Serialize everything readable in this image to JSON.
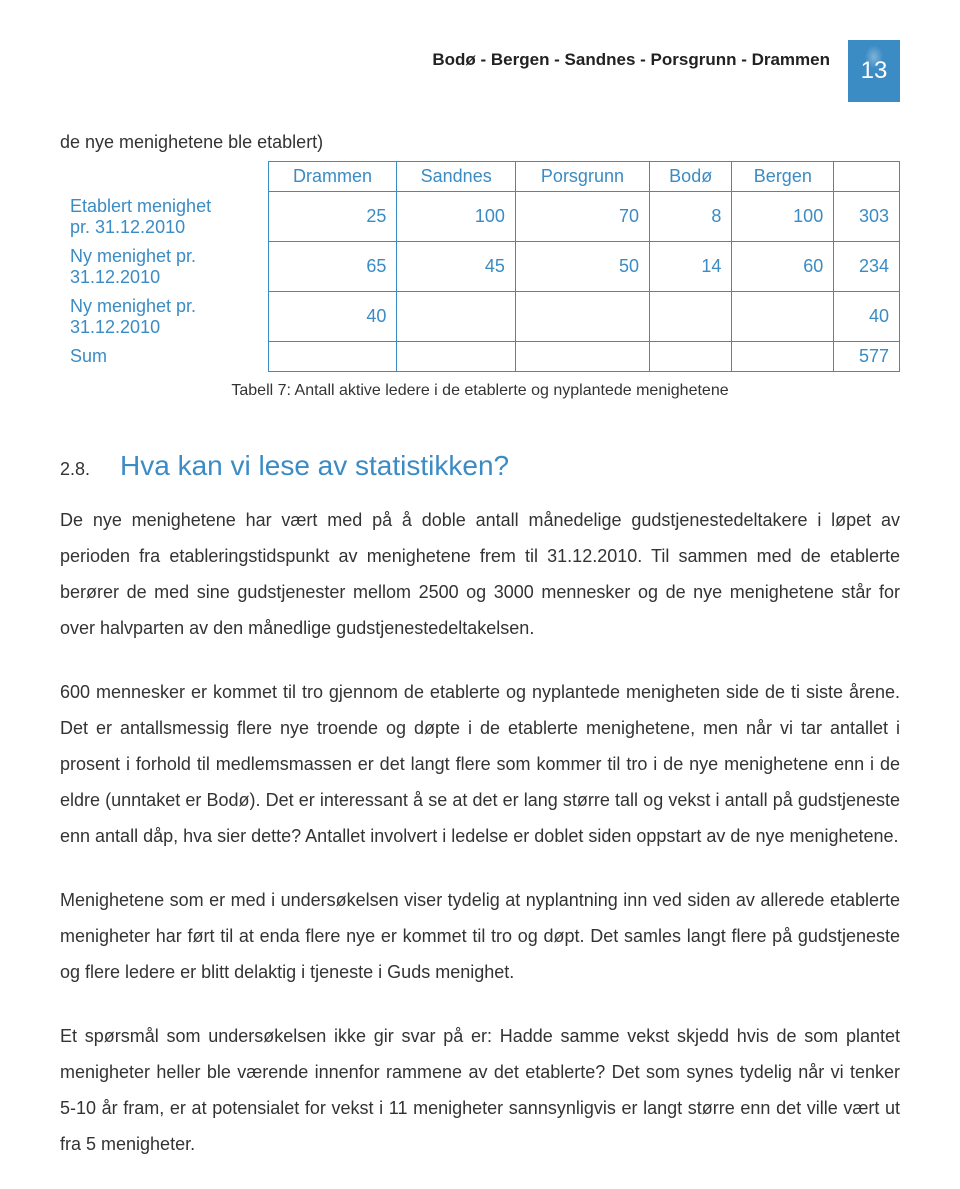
{
  "header": {
    "cities": "Bodø - Bergen - Sandnes - Porsgrunn - Drammen",
    "page_number": "13"
  },
  "intro": "de nye menighetene ble etablert)",
  "table": {
    "columns": [
      "",
      "Drammen",
      "Sandnes",
      "Porsgrunn",
      "Bodø",
      "Bergen",
      ""
    ],
    "rows": [
      {
        "label": "Etablert menighet\npr. 31.12.2010",
        "cells": [
          "25",
          "100",
          "70",
          "8",
          "100",
          "303"
        ]
      },
      {
        "label": "Ny menighet pr.\n31.12.2010",
        "cells": [
          "65",
          "45",
          "50",
          "14",
          "60",
          "234"
        ]
      },
      {
        "label": "Ny menighet pr.\n31.12.2010",
        "cells": [
          "40",
          "",
          "",
          "",
          "",
          "40"
        ]
      },
      {
        "label": "Sum",
        "cells": [
          "",
          "",
          "",
          "",
          "",
          "577"
        ]
      }
    ],
    "caption": "Tabell 7: Antall aktive ledere i de etablerte og nyplantede menighetene",
    "header_color": "#3b8bc4",
    "border_color": "#3b8bc4",
    "cell_text_color": "#3b8bc4",
    "font_size": 18
  },
  "section": {
    "number": "2.8.",
    "title": "Hva kan vi lese av statistikken?"
  },
  "paragraphs": [
    "De nye menighetene har vært med på å doble antall månedelige gudstjenestedeltakere i løpet av perioden fra etableringstidspunkt av menighetene frem til 31.12.2010. Til sammen med de etablerte berører de med sine gudstjenester mellom 2500 og 3000 mennesker og de nye menighetene står for over halvparten av den månedlige gudstjenestedeltakelsen.",
    "600 mennesker er kommet til tro gjennom de etablerte og nyplantede menigheten side de ti siste årene. Det er antallsmessig flere nye troende og døpte i de etablerte menighetene, men når vi tar antallet i prosent i forhold til medlemsmassen er det langt flere som kommer til tro i de nye menighetene enn i de eldre (unntaket er Bodø). Det er interessant å se at det er lang større tall og vekst i antall på gudstjeneste enn antall dåp, hva sier dette? Antallet involvert i ledelse er doblet siden oppstart av de nye menighetene.",
    "Menighetene som er med i undersøkelsen viser tydelig at nyplantning inn ved siden av allerede etablerte menigheter har ført til at enda flere nye er kommet til tro og døpt. Det samles langt flere på gudstjeneste og flere ledere er blitt delaktig i tjeneste i Guds menighet.",
    "Et spørsmål som undersøkelsen ikke gir svar på er: Hadde samme vekst skjedd hvis de som plantet menigheter heller ble værende innenfor rammene av det etablerte? Det som synes tydelig når vi tenker 5-10 år fram, er at potensialet for vekst i 11 menigheter sannsynligvis er langt større enn det ville vært ut fra 5 menigheter."
  ],
  "colors": {
    "accent": "#3b8bc4",
    "text": "#333333",
    "background": "#ffffff"
  }
}
